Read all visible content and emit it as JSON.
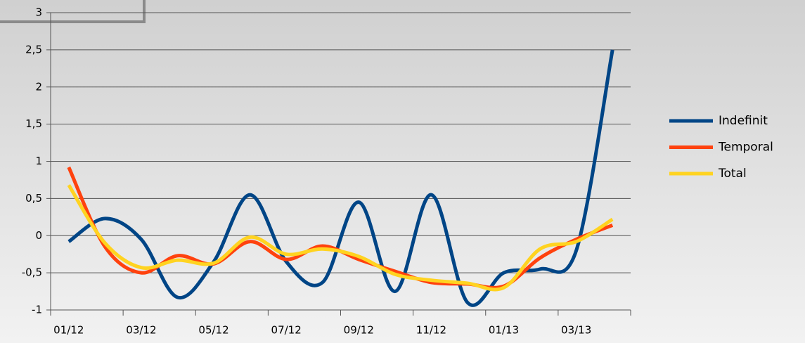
{
  "chart_data": {
    "type": "line",
    "categories": [
      "01/12",
      null,
      "03/12",
      null,
      "05/12",
      null,
      "07/12",
      null,
      "09/12",
      null,
      "11/12",
      null,
      "01/13",
      null,
      "03/13",
      null
    ],
    "series": [
      {
        "name": "Indefinit",
        "color": "#004586",
        "values": [
          -0.08,
          0.23,
          -0.05,
          -0.83,
          -0.35,
          0.55,
          -0.35,
          -0.63,
          0.45,
          -0.75,
          0.55,
          -0.9,
          -0.5,
          -0.45,
          -0.2,
          2.5
        ]
      },
      {
        "name": "Temporal",
        "color": "#ff420e",
        "values": [
          0.92,
          -0.15,
          -0.5,
          -0.27,
          -0.38,
          -0.08,
          -0.32,
          -0.14,
          -0.32,
          -0.48,
          -0.63,
          -0.65,
          -0.68,
          -0.3,
          -0.05,
          0.14
        ]
      },
      {
        "name": "Total",
        "color": "#ffd320",
        "values": [
          0.68,
          -0.1,
          -0.43,
          -0.33,
          -0.37,
          -0.02,
          -0.25,
          -0.18,
          -0.28,
          -0.52,
          -0.6,
          -0.64,
          -0.7,
          -0.18,
          -0.08,
          0.22
        ]
      }
    ],
    "ylim": [
      -1,
      3
    ],
    "yticks": [
      -1,
      {
        "value": -0.5,
        "label": "-0,5"
      },
      0,
      {
        "value": 0.5,
        "label": "0,5"
      },
      1,
      {
        "value": 1.5,
        "label": "1,5"
      },
      2,
      {
        "value": 2.5,
        "label": "2,5"
      },
      3
    ],
    "grid": true,
    "legend": "right",
    "smooth": true
  }
}
